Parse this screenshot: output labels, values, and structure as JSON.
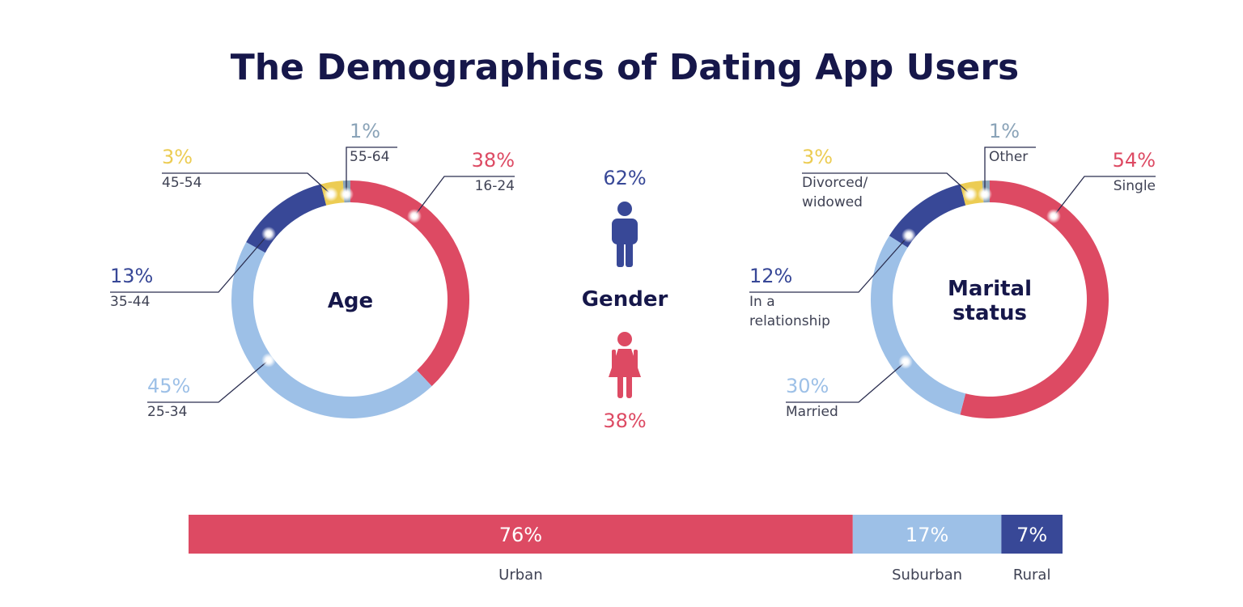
{
  "title": "The Demographics of Dating App Users",
  "colors": {
    "red": "#dd4a63",
    "light_blue": "#9dc0e7",
    "navy": "#384897",
    "yellow": "#eccc53",
    "gray_blue": "#8aa3b8",
    "title": "#16174a"
  },
  "chart_data": [
    {
      "type": "pie",
      "subtype": "donut",
      "center_label": "Age",
      "slices": [
        {
          "label": "16-24",
          "value": 38,
          "pct_label": "38%",
          "color": "#dd4a63"
        },
        {
          "label": "25-34",
          "value": 45,
          "pct_label": "45%",
          "color": "#9dc0e7"
        },
        {
          "label": "35-44",
          "value": 13,
          "pct_label": "13%",
          "color": "#384897"
        },
        {
          "label": "45-54",
          "value": 3,
          "pct_label": "3%",
          "color": "#eccc53"
        },
        {
          "label": "55-64",
          "value": 1,
          "pct_label": "1%",
          "color": "#8aa3b8"
        }
      ]
    },
    {
      "type": "pictogram",
      "center_label": "Gender",
      "items": [
        {
          "icon": "male-icon",
          "value": 62,
          "pct_label": "62%",
          "color": "#384897"
        },
        {
          "icon": "female-icon",
          "value": 38,
          "pct_label": "38%",
          "color": "#dd4a63"
        }
      ]
    },
    {
      "type": "pie",
      "subtype": "donut",
      "center_label_lines": [
        "Marital",
        "status"
      ],
      "slices": [
        {
          "label_lines": [
            "Single"
          ],
          "value": 54,
          "pct_label": "54%",
          "color": "#dd4a63"
        },
        {
          "label_lines": [
            "Married"
          ],
          "value": 30,
          "pct_label": "30%",
          "color": "#9dc0e7"
        },
        {
          "label_lines": [
            "In a",
            "relationship"
          ],
          "value": 12,
          "pct_label": "12%",
          "color": "#384897"
        },
        {
          "label_lines": [
            "Divorced/",
            "widowed"
          ],
          "value": 3,
          "pct_label": "3%",
          "color": "#eccc53"
        },
        {
          "label_lines": [
            "Other"
          ],
          "value": 1,
          "pct_label": "1%",
          "color": "#8aa3b8"
        }
      ]
    },
    {
      "type": "bar",
      "subtype": "stacked-horizontal-100",
      "segments": [
        {
          "label": "Urban",
          "value": 76,
          "pct_label": "76%",
          "color": "#dd4a63"
        },
        {
          "label": "Suburban",
          "value": 17,
          "pct_label": "17%",
          "color": "#9dc0e7"
        },
        {
          "label": "Rural",
          "value": 7,
          "pct_label": "7%",
          "color": "#384897"
        }
      ]
    }
  ]
}
